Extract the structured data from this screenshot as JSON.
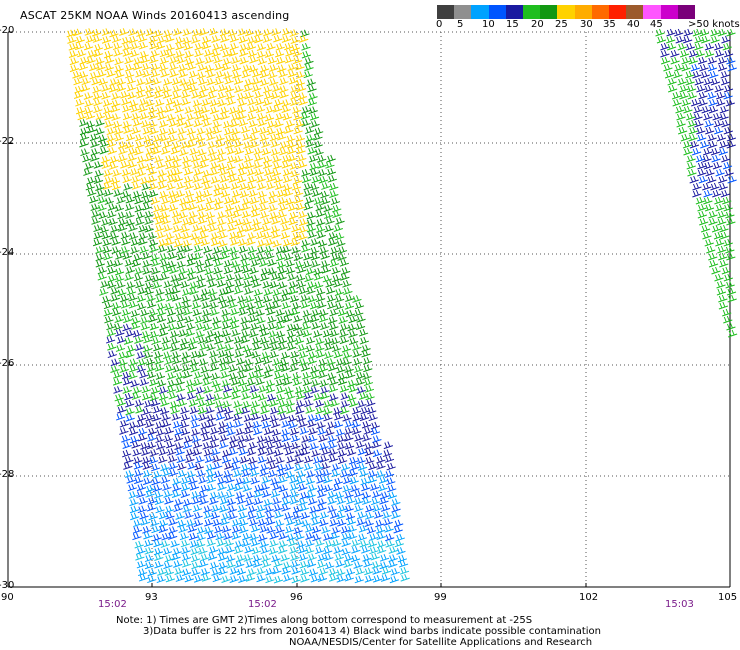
{
  "title": "ASCAT 25KM NOAA Winds 20160413 ascending",
  "legend": {
    "colors": [
      "#3f3f3f",
      "#8f8f8f",
      "#00a2ff",
      "#0055ff",
      "#1a1aa0",
      "#1fbe1f",
      "#129812",
      "#ffd200",
      "#ffac00",
      "#ff6a00",
      "#ff2000",
      "#9c5a2c",
      "#ff55ff",
      "#cc00cc",
      "#7a007a"
    ],
    "labels": [
      "0",
      "5",
      "10",
      "15",
      "20",
      "25",
      "30",
      "35",
      "40",
      "45",
      ">50 knots"
    ]
  },
  "axes": {
    "y_labels": [
      "-20",
      "-22",
      "-24",
      "-26",
      "-28",
      "-30"
    ],
    "x_labels": [
      "90",
      "93",
      "96",
      "99",
      "102",
      "105"
    ]
  },
  "times": [
    "15:02",
    "15:02",
    "15:03"
  ],
  "notes": [
    "Note: 1) Times are GMT 2)Times along bottom correspond to measurement at -25S",
    "3)Data buffer is 22 hrs from 20160413 4) Black wind barbs indicate possible contamination",
    "NOAA/NESDIS/Center for Satellite Applications and Research"
  ]
}
